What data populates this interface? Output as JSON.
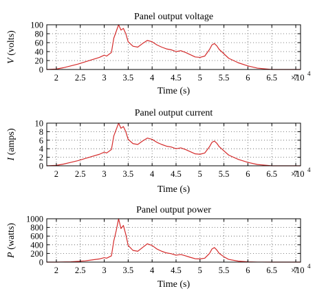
{
  "chart_data": [
    {
      "type": "line",
      "title": "Panel output voltage",
      "ylabel_var": "V",
      "ylabel_unit": "(volts)",
      "xlabel": "Time (s)",
      "x_multiplier": "×10",
      "x_multiplier_exp": "4",
      "xlim": [
        1.8,
        7.1
      ],
      "ylim": [
        0,
        100
      ],
      "xticks": [
        2,
        2.5,
        3,
        3.5,
        4,
        4.5,
        5,
        5.5,
        6,
        6.5,
        7
      ],
      "xtick_labels": [
        "2",
        "2.5",
        "3",
        "3.5",
        "4",
        "4.5",
        "5",
        "5.5",
        "6",
        "6.5",
        "7"
      ],
      "yticks": [
        0,
        20,
        40,
        60,
        80,
        100
      ],
      "ytick_labels": [
        "0",
        "20",
        "40",
        "60",
        "80",
        "100"
      ],
      "grid": true,
      "color": "#d42a2a",
      "series": [
        {
          "x": [
            1.8,
            2.0,
            2.15,
            2.3,
            2.45,
            2.6,
            2.75,
            2.9,
            3.0,
            3.05,
            3.15,
            3.2,
            3.25,
            3.3,
            3.35,
            3.4,
            3.45,
            3.5,
            3.6,
            3.7,
            3.8,
            3.9,
            4.0,
            4.1,
            4.2,
            4.3,
            4.4,
            4.5,
            4.6,
            4.7,
            4.8,
            4.9,
            5.0,
            5.1,
            5.2,
            5.25,
            5.3,
            5.35,
            5.4,
            5.5,
            5.6,
            5.8,
            6.0,
            6.2,
            6.5,
            6.8,
            7.1
          ],
          "y": [
            0,
            1,
            4,
            8,
            12,
            17,
            22,
            27,
            32,
            30,
            38,
            70,
            85,
            100,
            88,
            92,
            80,
            62,
            52,
            50,
            58,
            65,
            62,
            55,
            50,
            46,
            44,
            40,
            42,
            38,
            33,
            28,
            27,
            30,
            45,
            55,
            58,
            53,
            45,
            35,
            25,
            15,
            8,
            3,
            0,
            0,
            0
          ]
        }
      ]
    },
    {
      "type": "line",
      "title": "Panel output current",
      "ylabel_var": "I",
      "ylabel_unit": "(amps)",
      "xlabel": "Time (s)",
      "x_multiplier": "×10",
      "x_multiplier_exp": "4",
      "xlim": [
        1.8,
        7.1
      ],
      "ylim": [
        0,
        10
      ],
      "xticks": [
        2,
        2.5,
        3,
        3.5,
        4,
        4.5,
        5,
        5.5,
        6,
        6.5,
        7
      ],
      "xtick_labels": [
        "2",
        "2.5",
        "3",
        "3.5",
        "4",
        "4.5",
        "5",
        "5.5",
        "6",
        "6.5",
        "7"
      ],
      "yticks": [
        0,
        2,
        4,
        6,
        8,
        10
      ],
      "ytick_labels": [
        "0",
        "2",
        "4",
        "6",
        "8",
        "10"
      ],
      "grid": true,
      "color": "#d42a2a",
      "series": [
        {
          "x": [
            1.8,
            2.0,
            2.15,
            2.3,
            2.45,
            2.6,
            2.75,
            2.9,
            3.0,
            3.05,
            3.15,
            3.2,
            3.25,
            3.3,
            3.35,
            3.4,
            3.45,
            3.5,
            3.6,
            3.7,
            3.8,
            3.9,
            4.0,
            4.1,
            4.2,
            4.3,
            4.4,
            4.5,
            4.6,
            4.7,
            4.8,
            4.9,
            5.0,
            5.1,
            5.2,
            5.25,
            5.3,
            5.35,
            5.4,
            5.5,
            5.6,
            5.8,
            6.0,
            6.2,
            6.5,
            6.8,
            7.1
          ],
          "y": [
            0,
            0.1,
            0.4,
            0.8,
            1.2,
            1.7,
            2.2,
            2.7,
            3.2,
            3.0,
            3.8,
            7.0,
            8.5,
            10.0,
            8.8,
            9.2,
            8.0,
            6.2,
            5.2,
            5.0,
            5.8,
            6.5,
            6.2,
            5.5,
            5.0,
            4.6,
            4.4,
            4.0,
            4.2,
            3.8,
            3.3,
            2.8,
            2.7,
            3.0,
            4.5,
            5.5,
            5.8,
            5.3,
            4.5,
            3.5,
            2.5,
            1.5,
            0.8,
            0.3,
            0,
            0,
            0
          ]
        }
      ]
    },
    {
      "type": "line",
      "title": "Panel output power",
      "ylabel_var": "P",
      "ylabel_unit": "(watts)",
      "xlabel": "Time (s)",
      "x_multiplier": "×10",
      "x_multiplier_exp": "4",
      "xlim": [
        1.8,
        7.1
      ],
      "ylim": [
        0,
        1000
      ],
      "xticks": [
        2,
        2.5,
        3,
        3.5,
        4,
        4.5,
        5,
        5.5,
        6,
        6.5,
        7
      ],
      "xtick_labels": [
        "2",
        "2.5",
        "3",
        "3.5",
        "4",
        "4.5",
        "5",
        "5.5",
        "6",
        "6.5",
        "7"
      ],
      "yticks": [
        0,
        200,
        400,
        600,
        800,
        1000
      ],
      "ytick_labels": [
        "0",
        "200",
        "400",
        "600",
        "800",
        "1000"
      ],
      "grid": true,
      "color": "#d42a2a",
      "series": [
        {
          "x": [
            1.8,
            2.0,
            2.3,
            2.6,
            2.9,
            3.0,
            3.05,
            3.15,
            3.2,
            3.25,
            3.3,
            3.35,
            3.4,
            3.45,
            3.5,
            3.6,
            3.7,
            3.8,
            3.9,
            4.0,
            4.1,
            4.2,
            4.3,
            4.4,
            4.5,
            4.6,
            4.7,
            4.8,
            4.9,
            5.0,
            5.1,
            5.2,
            5.25,
            5.3,
            5.35,
            5.4,
            5.5,
            5.6,
            5.8,
            6.0,
            6.2,
            6.5,
            6.8,
            7.1
          ],
          "y": [
            0,
            0,
            6,
            29,
            73,
            102,
            90,
            144,
            490,
            722,
            1000,
            774,
            846,
            640,
            384,
            270,
            250,
            336,
            422,
            384,
            302,
            250,
            212,
            194,
            160,
            176,
            144,
            109,
            78,
            73,
            90,
            202,
            302,
            336,
            281,
            202,
            122,
            62,
            22,
            6,
            1,
            0,
            0,
            0
          ]
        }
      ]
    }
  ]
}
